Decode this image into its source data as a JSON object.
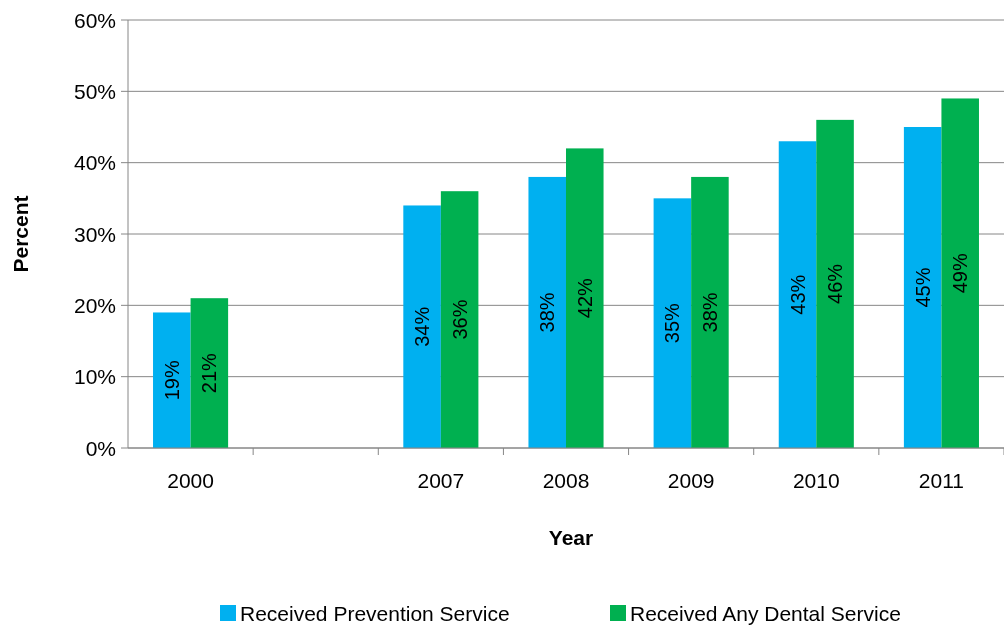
{
  "chart_data": {
    "type": "bar",
    "xlabel": "Year",
    "ylabel": "Percent",
    "categories": [
      "2000",
      null,
      "2007",
      "2008",
      "2009",
      "2010",
      "2011"
    ],
    "series": [
      {
        "name": "Received Prevention Service",
        "color": "#00b0f0",
        "values": [
          19,
          null,
          34,
          38,
          35,
          43,
          45
        ],
        "value_labels": [
          "19%",
          null,
          "34%",
          "38%",
          "35%",
          "43%",
          "45%"
        ]
      },
      {
        "name": "Received Any Dental Service",
        "color": "#00b050",
        "values": [
          21,
          null,
          36,
          42,
          38,
          46,
          49
        ],
        "value_labels": [
          "21%",
          null,
          "36%",
          "42%",
          "38%",
          "46%",
          "49%"
        ]
      }
    ],
    "ylim": [
      0,
      60
    ],
    "yticks": [
      {
        "value": 0,
        "label": "0%"
      },
      {
        "value": 10,
        "label": "10%"
      },
      {
        "value": 20,
        "label": "20%"
      },
      {
        "value": 30,
        "label": "30%"
      },
      {
        "value": 40,
        "label": "40%"
      },
      {
        "value": 50,
        "label": "50%"
      },
      {
        "value": 60,
        "label": "60%"
      }
    ],
    "grid": "y",
    "legend": "bottom"
  }
}
